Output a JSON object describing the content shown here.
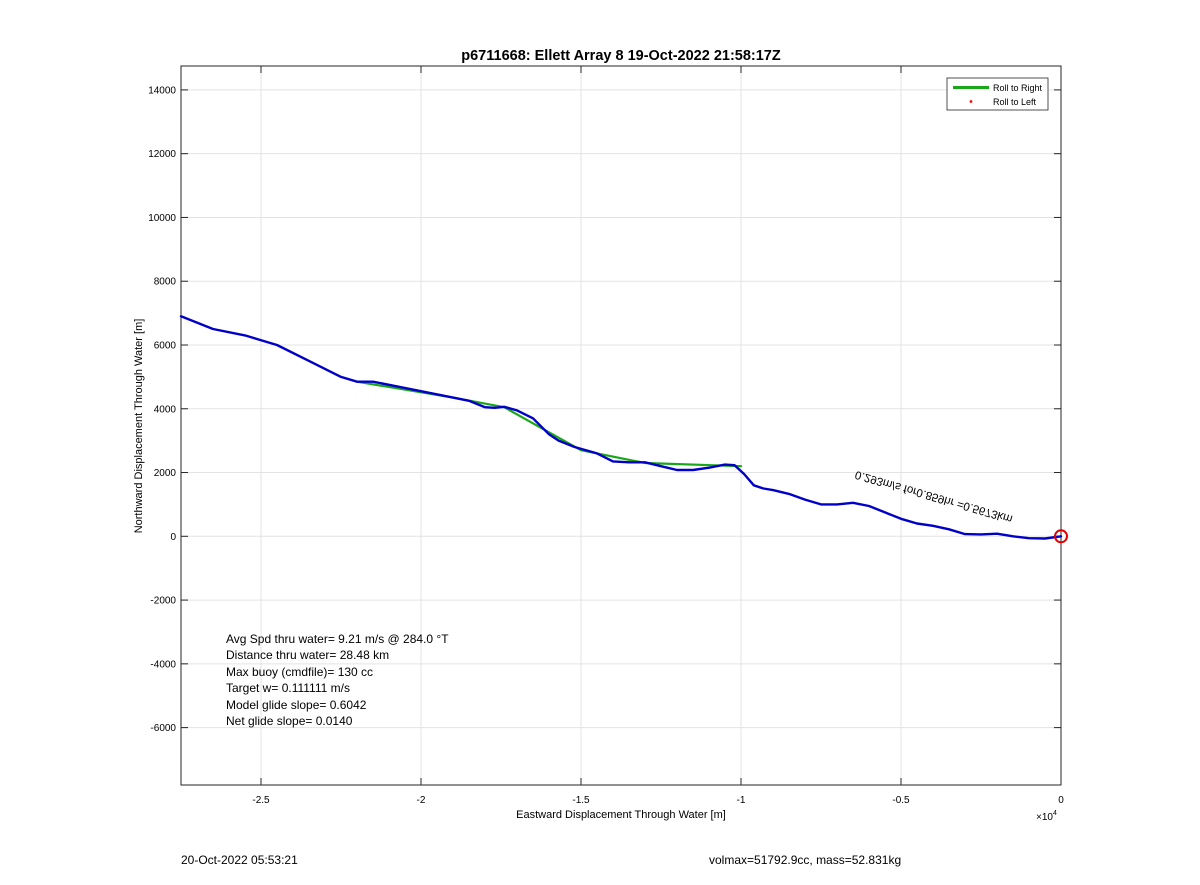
{
  "chart_data": {
    "type": "line",
    "title": "p6711668: Ellett Array 8 19-Oct-2022 21:58:17Z",
    "xlabel": "Eastward Displacement Through Water [m]",
    "ylabel": "Northward Displacement Through Water [m]",
    "x_exponent_label": "×10",
    "x_exponent_power": "4",
    "xlim": [
      -27500,
      0
    ],
    "ylim": [
      -7800,
      14750
    ],
    "x_ticks": [
      -25000,
      -20000,
      -15000,
      -10000,
      -5000,
      0
    ],
    "x_tick_labels": [
      "-2.5",
      "-2",
      "-1.5",
      "-1",
      "-0.5",
      "0"
    ],
    "y_ticks": [
      -6000,
      -4000,
      -2000,
      0,
      2000,
      4000,
      6000,
      8000,
      10000,
      12000,
      14000
    ],
    "y_tick_labels": [
      "-6000",
      "-4000",
      "-2000",
      "0",
      "2000",
      "4000",
      "6000",
      "8000",
      "10000",
      "12000",
      "14000"
    ],
    "grid": true,
    "legend_position": "top-right",
    "legend": [
      {
        "label": "Roll to Right",
        "color": "#1aa81a",
        "style": "line"
      },
      {
        "label": "Roll to Left",
        "color": "#ff0000",
        "style": "dot"
      }
    ],
    "series": [
      {
        "name": "Roll to Right",
        "color": "#1aa81a",
        "x": [
          -22000,
          -19000,
          -17400,
          -15000,
          -13000,
          -10000
        ],
        "y": [
          4850,
          4350,
          4050,
          2700,
          2300,
          2200
        ]
      },
      {
        "color": "#0000c8",
        "x": [
          -27500,
          -26500,
          -25500,
          -24500,
          -23500,
          -22500,
          -22000,
          -21500,
          -21000,
          -20000,
          -19000,
          -18500,
          -18000,
          -17700,
          -17400,
          -17000,
          -16500,
          -16000,
          -15700,
          -15200,
          -14500,
          -14000,
          -13500,
          -13000,
          -12500,
          -12000,
          -11500,
          -11000,
          -10500,
          -10200,
          -9900,
          -9600,
          -9300,
          -9000,
          -8500,
          -8000,
          -7500,
          -7000,
          -6500,
          -6000,
          -5500,
          -5000,
          -4500,
          -4000,
          -3500,
          -3000,
          -2500,
          -2000,
          -1500,
          -1000,
          -500,
          0
        ],
        "y": [
          6900,
          6500,
          6300,
          6000,
          5500,
          5000,
          4850,
          4850,
          4750,
          4550,
          4350,
          4250,
          4050,
          4030,
          4060,
          3950,
          3700,
          3200,
          3000,
          2800,
          2600,
          2350,
          2320,
          2320,
          2200,
          2080,
          2080,
          2150,
          2250,
          2230,
          1950,
          1600,
          1500,
          1450,
          1330,
          1150,
          1000,
          1000,
          1050,
          950,
          750,
          550,
          400,
          330,
          220,
          70,
          60,
          80,
          0,
          -60,
          -70,
          0
        ]
      }
    ],
    "annotations": {
      "rotated_label": "0.293m/s for0.859hr =0.5673km",
      "end_marker": "circle"
    },
    "stats": [
      "Avg Spd thru water=  9.21 m/s @ 284.0 °T",
      "Distance thru water= 28.48 km",
      "Max buoy (cmdfile)= 130 cc",
      "Target w= 0.111111 m/s",
      "Model glide slope= 0.6042",
      "Net glide slope= 0.0140"
    ]
  },
  "footer": {
    "timestamp": "20-Oct-2022 05:53:21",
    "vol_mass": "volmax=51792.9cc, mass=52.831kg"
  }
}
